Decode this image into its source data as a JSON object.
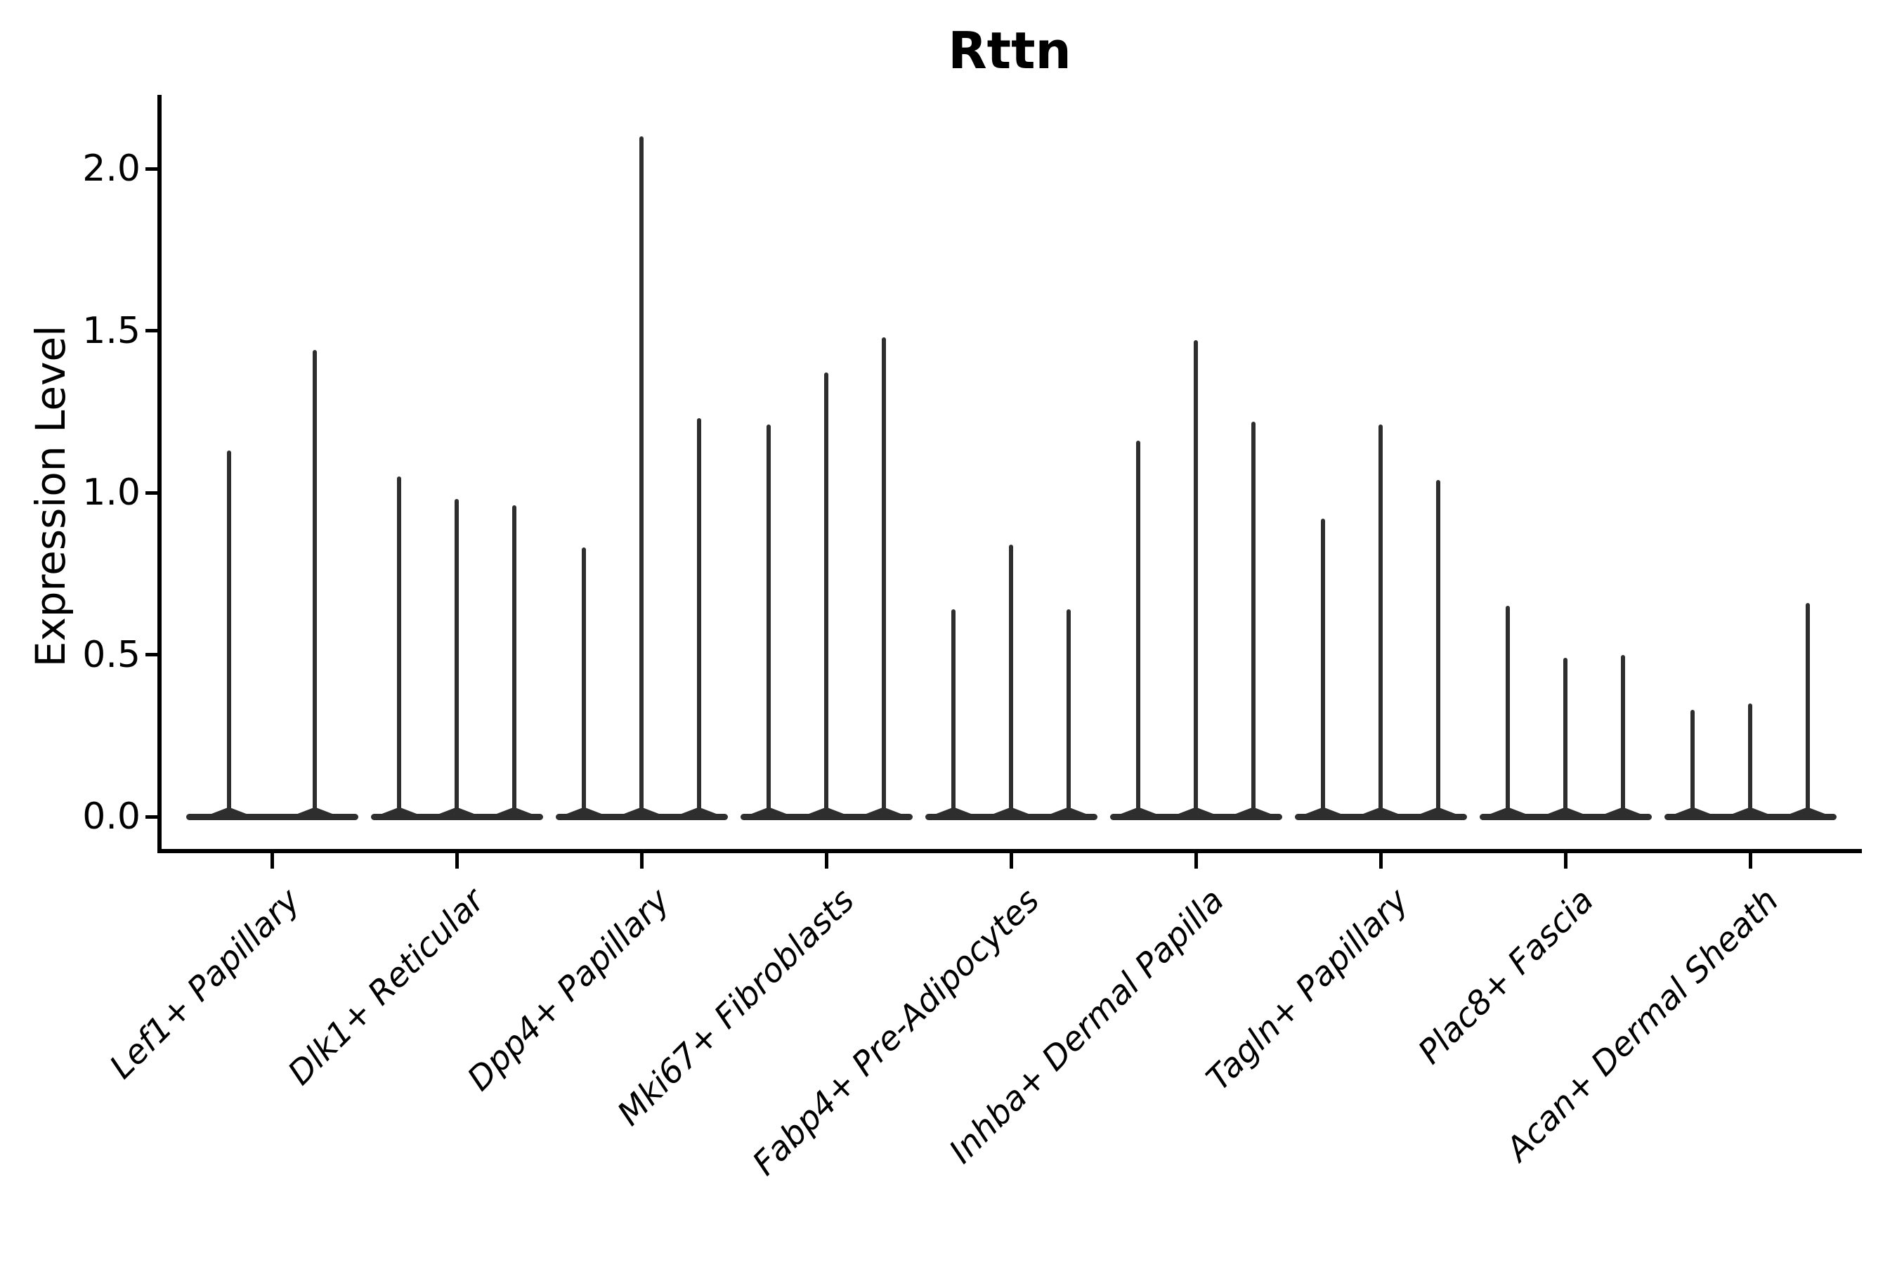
{
  "chart_data": {
    "type": "violin",
    "title": "Rttn",
    "ylabel": "Expression Level",
    "xlabel": "",
    "y_ticks": [
      0.0,
      0.5,
      1.0,
      1.5,
      2.0
    ],
    "y_tick_labels": [
      "0.0",
      "0.5",
      "1.0",
      "1.5",
      "2.0"
    ],
    "ylim": [
      -0.1,
      2.23
    ],
    "grid": false,
    "legend_position": "none",
    "categories": [
      "Lef1+ Papillary",
      "Dlk1+ Reticular",
      "Dpp4+ Papillary",
      "Mki67+ Fibroblasts",
      "Fabp4+ Pre-Adipocytes",
      "Inhba+ Dermal Papilla",
      "Tagln+ Papillary",
      "Plac8+ Fascia",
      "Acan+ Dermal Sheath"
    ],
    "series": [
      {
        "category": "Lef1+ Papillary",
        "violin_max_expression": [
          1.13,
          1.44
        ]
      },
      {
        "category": "Dlk1+ Reticular",
        "violin_max_expression": [
          1.05,
          0.98,
          0.96
        ]
      },
      {
        "category": "Dpp4+ Papillary",
        "violin_max_expression": [
          0.83,
          2.1,
          1.23
        ]
      },
      {
        "category": "Mki67+ Fibroblasts",
        "violin_max_expression": [
          1.21,
          1.37,
          1.48
        ]
      },
      {
        "category": "Fabp4+ Pre-Adipocytes",
        "violin_max_expression": [
          0.64,
          0.84,
          0.64
        ]
      },
      {
        "category": "Inhba+ Dermal Papilla",
        "violin_max_expression": [
          1.16,
          1.47,
          1.22
        ]
      },
      {
        "category": "Tagln+ Papillary",
        "violin_max_expression": [
          0.92,
          1.21,
          1.04
        ]
      },
      {
        "category": "Plac8+ Fascia",
        "violin_max_expression": [
          0.65,
          0.49,
          0.5
        ]
      },
      {
        "category": "Acan+ Dermal Sheath",
        "violin_max_expression": [
          0.33,
          0.35,
          0.66
        ]
      }
    ],
    "baseline_value": 0.0,
    "description": "Each category shows thin violins (density mass at 0 with a narrow spike up to the listed max expression value)."
  },
  "colors": {
    "violin": "#2e2e2e",
    "axis": "#000000",
    "text": "#000000",
    "background": "#ffffff"
  }
}
